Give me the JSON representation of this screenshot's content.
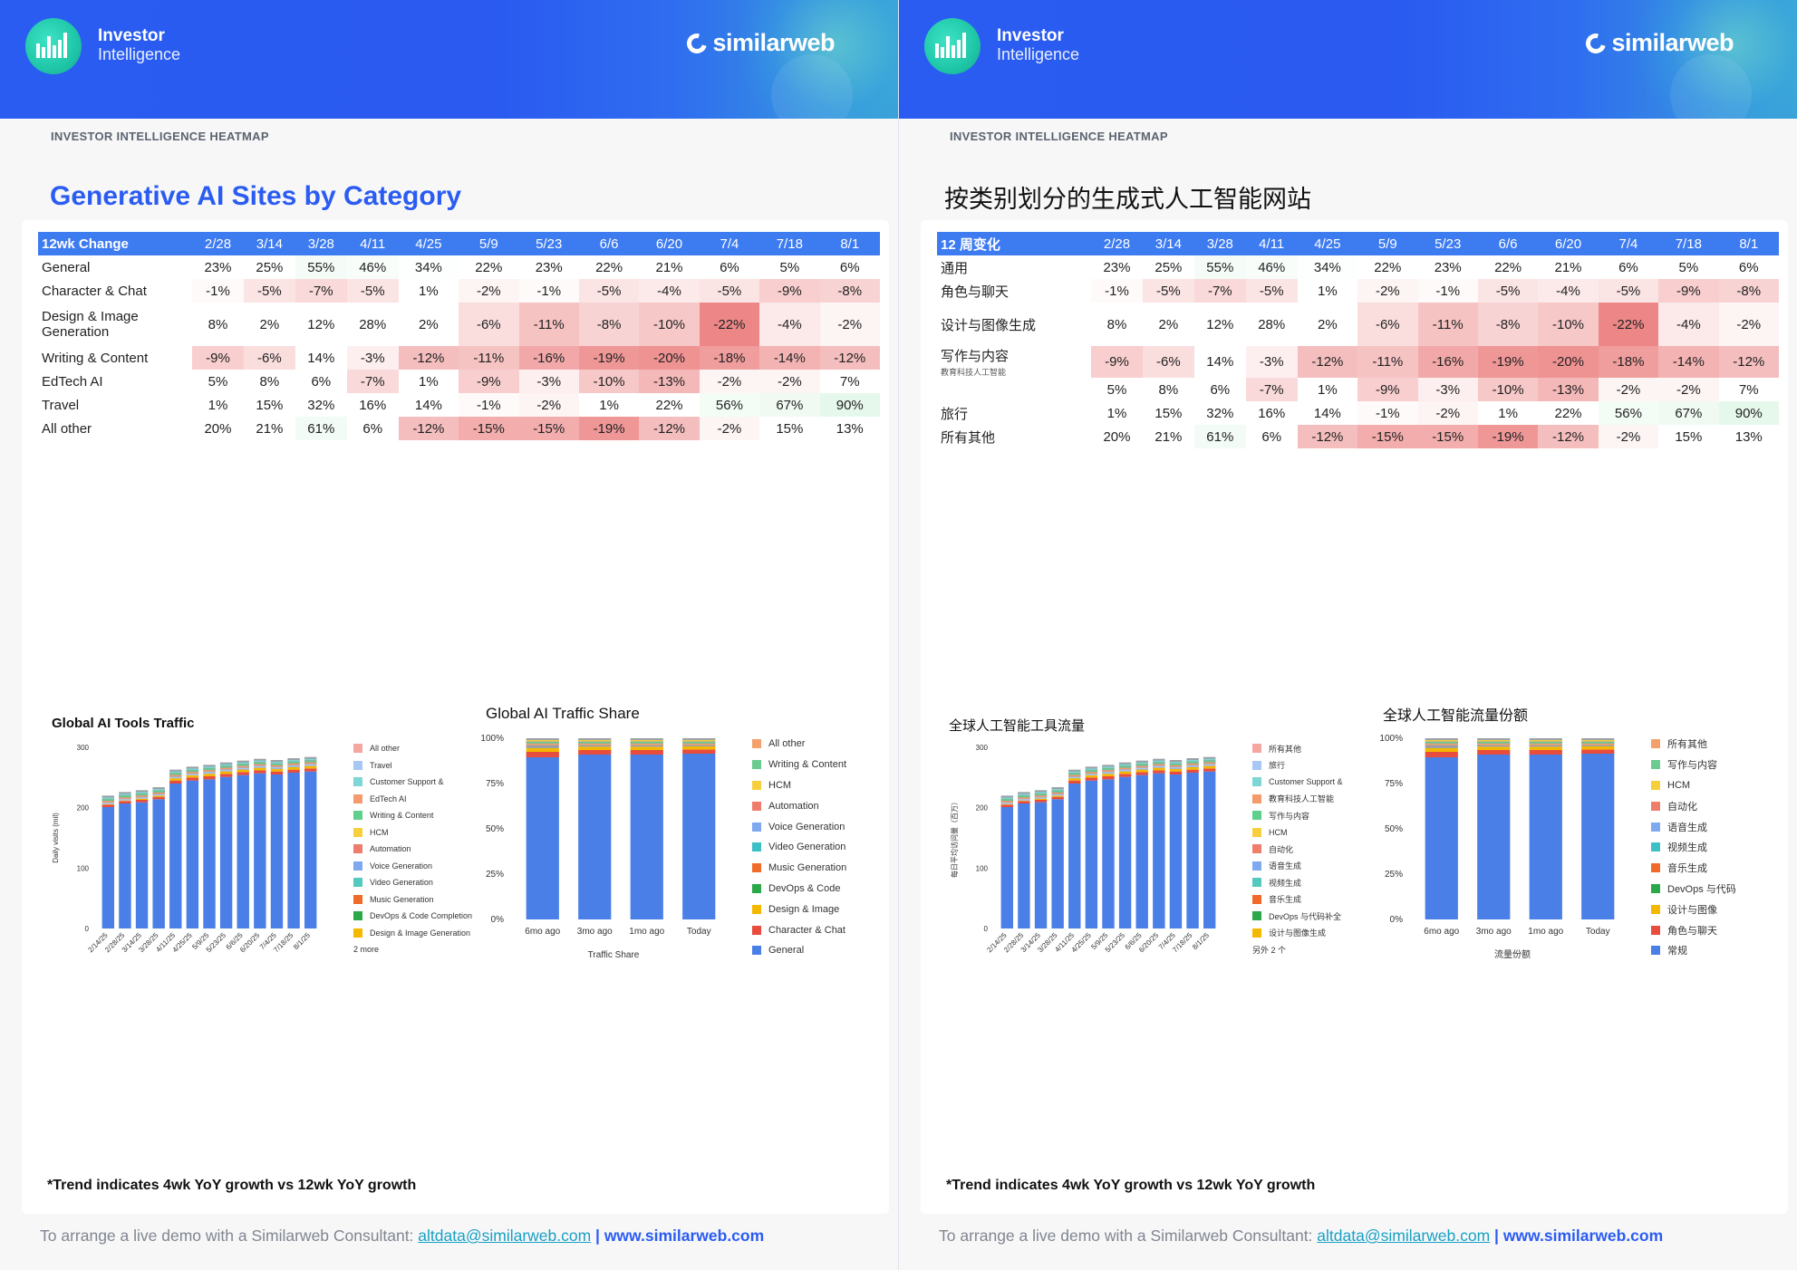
{
  "brand": {
    "line1": "Investor",
    "line2": "Intelligence",
    "similarweb": "similarweb"
  },
  "colors": {
    "header_blue": "#2a5cf2",
    "table_header": "#3d7bf0",
    "accent_teal": "#1fc6a7",
    "link": "#19a0c4"
  },
  "eyebrow": "INVESTOR INTELLIGENCE HEATMAP",
  "pages": [
    {
      "title": "Generative AI Sites by Category",
      "table": {
        "header": [
          "12wk Change",
          "2/28",
          "3/14",
          "3/28",
          "4/11",
          "4/25",
          "5/9",
          "5/23",
          "6/6",
          "6/20",
          "7/4",
          "7/18",
          "8/1"
        ],
        "rows": [
          {
            "label": "General",
            "values": [
              "23%",
              "25%",
              "55%",
              "46%",
              "34%",
              "22%",
              "23%",
              "22%",
              "21%",
              "6%",
              "5%",
              "6%"
            ]
          },
          {
            "label": "Character & Chat",
            "values": [
              "-1%",
              "-5%",
              "-7%",
              "-5%",
              "1%",
              "-2%",
              "-1%",
              "-5%",
              "-4%",
              "-5%",
              "-9%",
              "-8%"
            ]
          },
          {
            "label": "Design & Image Generation",
            "values": [
              "8%",
              "2%",
              "12%",
              "28%",
              "2%",
              "-6%",
              "-11%",
              "-8%",
              "-10%",
              "-22%",
              "-4%",
              "-2%"
            ]
          },
          {
            "label": "Writing & Content",
            "values": [
              "-9%",
              "-6%",
              "14%",
              "-3%",
              "-12%",
              "-11%",
              "-16%",
              "-19%",
              "-20%",
              "-18%",
              "-14%",
              "-12%"
            ]
          },
          {
            "label": "EdTech AI",
            "values": [
              "5%",
              "8%",
              "6%",
              "-7%",
              "1%",
              "-9%",
              "-3%",
              "-10%",
              "-13%",
              "-2%",
              "-2%",
              "7%"
            ]
          },
          {
            "label": "Travel",
            "values": [
              "1%",
              "15%",
              "32%",
              "16%",
              "14%",
              "-1%",
              "-2%",
              "1%",
              "22%",
              "56%",
              "67%",
              "90%"
            ]
          },
          {
            "label": "All other",
            "values": [
              "20%",
              "21%",
              "61%",
              "6%",
              "-12%",
              "-15%",
              "-15%",
              "-19%",
              "-12%",
              "-2%",
              "15%",
              "13%"
            ]
          }
        ]
      },
      "traffic_chart": {
        "title": "Global AI Tools Traffic",
        "ylabel": "Daily visits (mil)",
        "yticks": [
          "0",
          "100",
          "200",
          "300"
        ],
        "legend": [
          "All other",
          "Travel",
          "Customer Support &",
          "EdTech AI",
          "Writing & Content",
          "HCM",
          "Automation",
          "Voice Generation",
          "Video Generation",
          "Music Generation",
          "DevOps & Code Completion",
          "Design & Image Generation",
          "2 more"
        ]
      },
      "share_chart": {
        "title": "Global AI Traffic Share",
        "xlabel": "Traffic Share",
        "yticks": [
          "0%",
          "25%",
          "50%",
          "75%",
          "100%"
        ],
        "legend": [
          "All other",
          "Writing & Content",
          "HCM",
          "Automation",
          "Voice Generation",
          "Video Generation",
          "Music Generation",
          "DevOps & Code",
          "Design & Image",
          "Character & Chat",
          "General"
        ]
      },
      "footnote": "*Trend indicates 4wk YoY growth vs 12wk YoY growth"
    },
    {
      "title": "按类别划分的生成式人工智能网站",
      "table": {
        "header": [
          "12 周变化",
          "2/28",
          "3/14",
          "3/28",
          "4/11",
          "4/25",
          "5/9",
          "5/23",
          "6/6",
          "6/20",
          "7/4",
          "7/18",
          "8/1"
        ],
        "rows": [
          {
            "label": "通用",
            "values": [
              "23%",
              "25%",
              "55%",
              "46%",
              "34%",
              "22%",
              "23%",
              "22%",
              "21%",
              "6%",
              "5%",
              "6%"
            ]
          },
          {
            "label": "角色与聊天",
            "values": [
              "-1%",
              "-5%",
              "-7%",
              "-5%",
              "1%",
              "-2%",
              "-1%",
              "-5%",
              "-4%",
              "-5%",
              "-9%",
              "-8%"
            ]
          },
          {
            "label": "设计与图像生成",
            "values": [
              "8%",
              "2%",
              "12%",
              "28%",
              "2%",
              "-6%",
              "-11%",
              "-8%",
              "-10%",
              "-22%",
              "-4%",
              "-2%"
            ]
          },
          {
            "label": "写作与内容",
            "sublabel": "教育科技人工智能",
            "values": [
              "-9%",
              "-6%",
              "14%",
              "-3%",
              "-12%",
              "-11%",
              "-16%",
              "-19%",
              "-20%",
              "-18%",
              "-14%",
              "-12%"
            ]
          },
          {
            "label": "",
            "values": [
              "5%",
              "8%",
              "6%",
              "-7%",
              "1%",
              "-9%",
              "-3%",
              "-10%",
              "-13%",
              "-2%",
              "-2%",
              "7%"
            ]
          },
          {
            "label": "旅行",
            "values": [
              "1%",
              "15%",
              "32%",
              "16%",
              "14%",
              "-1%",
              "-2%",
              "1%",
              "22%",
              "56%",
              "67%",
              "90%"
            ]
          },
          {
            "label": "所有其他",
            "values": [
              "20%",
              "21%",
              "61%",
              "6%",
              "-12%",
              "-15%",
              "-15%",
              "-19%",
              "-12%",
              "-2%",
              "15%",
              "13%"
            ]
          }
        ]
      },
      "traffic_chart": {
        "title": "全球人工智能工具流量",
        "ylabel": "每日平均访问量（百万）",
        "yticks": [
          "0",
          "100",
          "200",
          "300"
        ],
        "legend": [
          "所有其他",
          "旅行",
          "Customer Support &",
          "教育科技人工智能",
          "写作与内容",
          "HCM",
          "自动化",
          "语音生成",
          "视频生成",
          "音乐生成",
          "DevOps 与代码补全",
          "设计与图像生成",
          "另外 2 个"
        ]
      },
      "share_chart": {
        "title": "全球人工智能流量份额",
        "xlabel": "流量份额",
        "yticks": [
          "0%",
          "25%",
          "50%",
          "75%",
          "100%"
        ],
        "legend": [
          "所有其他",
          "写作与内容",
          "HCM",
          "自动化",
          "语音生成",
          "视频生成",
          "音乐生成",
          "DevOps 与代码",
          "设计与图像",
          "角色与聊天",
          "常规"
        ]
      },
      "footnote": "*Trend indicates 4wk YoY growth vs 12wk YoY growth"
    }
  ],
  "chart_data": [
    {
      "type": "bar",
      "stacked": true,
      "categories": [
        "2/14/25",
        "2/28/25",
        "3/14/25",
        "3/28/25",
        "4/11/25",
        "4/25/25",
        "5/9/25",
        "5/23/25",
        "6/6/25",
        "6/20/25",
        "7/4/25",
        "7/18/25",
        "8/1/25"
      ],
      "series": [
        {
          "name": "General",
          "values": [
            201,
            207,
            209,
            214,
            240,
            245,
            247,
            251,
            254,
            257,
            255,
            258,
            260
          ],
          "color": "#4a7fe8"
        },
        {
          "name": "Character & Chat",
          "values": [
            4,
            4,
            4,
            4,
            5,
            5,
            5,
            5,
            5,
            5,
            5,
            5,
            5
          ],
          "color": "#e74c3c"
        },
        {
          "name": "Design & Image Generation",
          "values": [
            3,
            3,
            3,
            3,
            4,
            4,
            4,
            4,
            4,
            4,
            4,
            4,
            4
          ],
          "color": "#f5b800"
        },
        {
          "name": "All other",
          "values": [
            12,
            12,
            13,
            13,
            14,
            14,
            15,
            15,
            15,
            15,
            15,
            15,
            15
          ],
          "color": "#9aa0a6"
        }
      ],
      "ylim": [
        0,
        300
      ],
      "yticks": [
        0,
        100,
        200,
        300
      ]
    },
    {
      "type": "bar",
      "stacked": true,
      "categories": [
        "6mo ago",
        "3mo ago",
        "1mo ago",
        "Today"
      ],
      "series": [
        {
          "name": "General",
          "values": [
            89.5,
            91,
            91,
            91.5
          ],
          "color": "#4a7fe8"
        },
        {
          "name": "Character & Chat",
          "values": [
            3,
            2.5,
            2.5,
            2.3
          ],
          "color": "#e74c3c"
        },
        {
          "name": "Design & Image",
          "values": [
            2,
            1.8,
            1.8,
            1.7
          ],
          "color": "#f5b800"
        },
        {
          "name": "All other",
          "values": [
            5.5,
            4.7,
            4.7,
            4.5
          ],
          "color": "#9aa0a6"
        }
      ],
      "ylim": [
        0,
        100
      ],
      "yticks": [
        "0%",
        "25%",
        "50%",
        "75%",
        "100%"
      ]
    }
  ],
  "footer": {
    "text": "To arrange a live demo with a Similarweb Consultant: ",
    "email": "altdata@similarweb.com",
    "sep": " | ",
    "site": "www.similarweb.com"
  }
}
